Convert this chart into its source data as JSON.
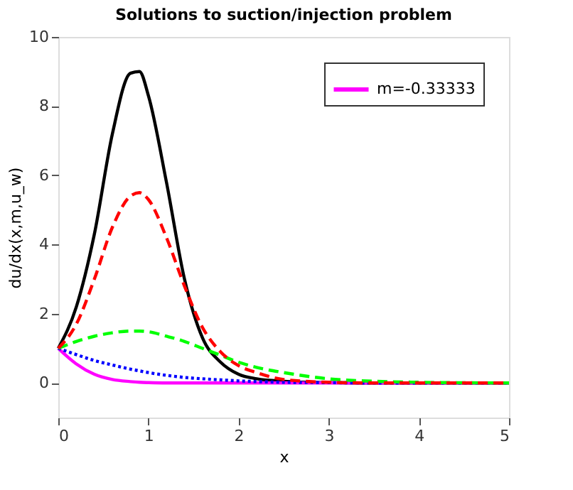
{
  "chart_data": {
    "type": "line",
    "title": "Solutions to suction/injection problem",
    "xlabel": "x",
    "ylabel": "du/dx(x,m,u_w)",
    "x": [
      0,
      0.2,
      0.4,
      0.6,
      0.8,
      0.9,
      1.0,
      1.2,
      1.4,
      1.6,
      1.8,
      2.0,
      2.2,
      2.5,
      3,
      3.5,
      4,
      5
    ],
    "series": [
      {
        "color": "#000000",
        "line_style": "solid",
        "values": [
          1,
          2.2,
          4.3,
          7.2,
          8.95,
          9.0,
          8.3,
          5.8,
          3.0,
          1.3,
          0.6,
          0.25,
          0.12,
          0.05,
          0.01,
          0,
          0,
          0
        ]
      },
      {
        "color": "#ff0000",
        "line_style": "dashed",
        "values": [
          1,
          1.7,
          3.0,
          4.5,
          5.4,
          5.5,
          5.3,
          4.2,
          2.8,
          1.6,
          0.9,
          0.5,
          0.3,
          0.1,
          0.02,
          0,
          0,
          0
        ]
      },
      {
        "color": "#00ff00",
        "line_style": "dashed",
        "values": [
          1,
          1.2,
          1.35,
          1.45,
          1.5,
          1.5,
          1.48,
          1.35,
          1.2,
          1.0,
          0.8,
          0.6,
          0.45,
          0.3,
          0.12,
          0.05,
          0.02,
          0
        ]
      },
      {
        "color": "#0000ff",
        "line_style": "dotted",
        "values": [
          1,
          0.82,
          0.65,
          0.52,
          0.4,
          0.35,
          0.3,
          0.22,
          0.16,
          0.12,
          0.09,
          0.06,
          0.04,
          0.02,
          0.01,
          0,
          0,
          0
        ]
      },
      {
        "name": "m=-0.33333",
        "color": "#ff00ff",
        "line_style": "solid",
        "values": [
          1,
          0.55,
          0.25,
          0.1,
          0.04,
          0.02,
          0.01,
          0,
          0,
          0,
          0,
          0,
          0,
          0,
          0,
          0,
          0,
          0
        ]
      }
    ],
    "xlim": [
      0,
      5
    ],
    "xticks": [
      0,
      1,
      2,
      3,
      4,
      5
    ],
    "ylim": [
      -1,
      10
    ],
    "yticks": [
      0,
      2,
      4,
      6,
      8,
      10
    ],
    "grid": false,
    "legend": "top right",
    "marker": "none"
  }
}
